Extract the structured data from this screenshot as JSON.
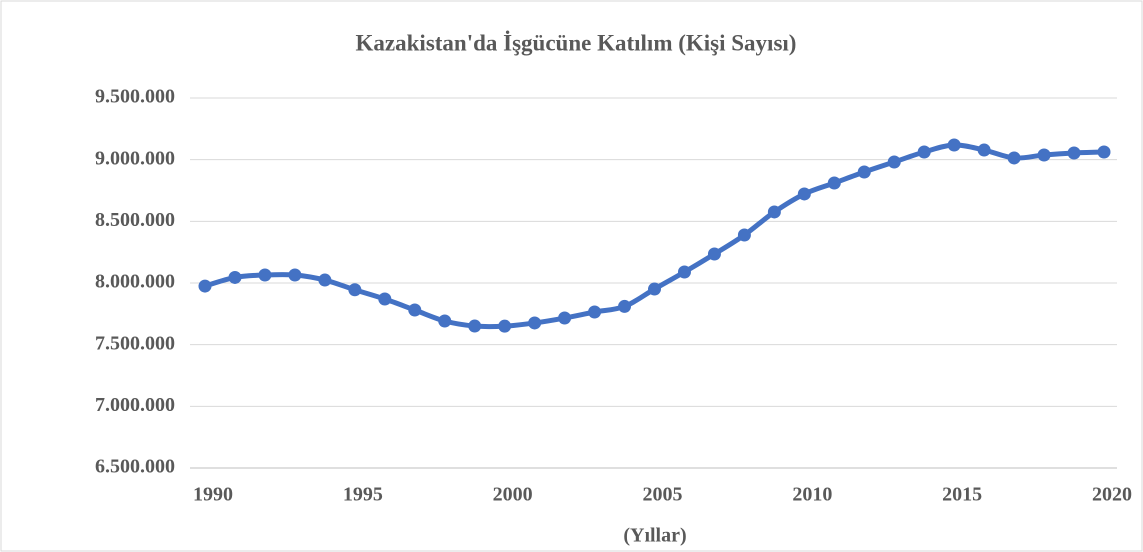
{
  "chart_data": {
    "type": "line",
    "title": "Kazakistan'da İşgücüne Katılım (Kişi Sayısı)",
    "x_label": "(Yıllar)",
    "x": [
      1990,
      1991,
      1992,
      1993,
      1994,
      1995,
      1996,
      1997,
      1998,
      1999,
      2000,
      2001,
      2002,
      2003,
      2004,
      2005,
      2006,
      2007,
      2008,
      2009,
      2010,
      2011,
      2012,
      2013,
      2014,
      2015,
      2016,
      2017,
      2018,
      2019,
      2020
    ],
    "series": [
      {
        "color": "#4472c4",
        "values": [
          7975000,
          8045000,
          8065000,
          8065000,
          8024000,
          7945000,
          7870000,
          7781000,
          7692000,
          7651000,
          7650000,
          7676000,
          7716000,
          7765000,
          7810000,
          7951000,
          8089000,
          8235000,
          8389000,
          8576000,
          8722000,
          8811000,
          8900000,
          8981000,
          9062000,
          9119000,
          9078000,
          9014000,
          9038000,
          9054000,
          9062000
        ]
      }
    ],
    "xlim": [
      1990,
      2020
    ],
    "xticks": [
      1990,
      1995,
      2000,
      2005,
      2010,
      2015,
      2020
    ],
    "ylim": [
      6500000,
      9500000
    ],
    "yticks": [
      {
        "value": 6500000,
        "label": "6.500.000"
      },
      {
        "value": 7000000,
        "label": "7.000.000"
      },
      {
        "value": 7500000,
        "label": "7.500.000"
      },
      {
        "value": 8000000,
        "label": "8.000.000"
      },
      {
        "value": 8500000,
        "label": "8.500.000"
      },
      {
        "value": 9000000,
        "label": "9.000.000"
      },
      {
        "value": 9500000,
        "label": "9.500.000"
      }
    ],
    "grid": true,
    "smooth": true,
    "markers": true
  }
}
